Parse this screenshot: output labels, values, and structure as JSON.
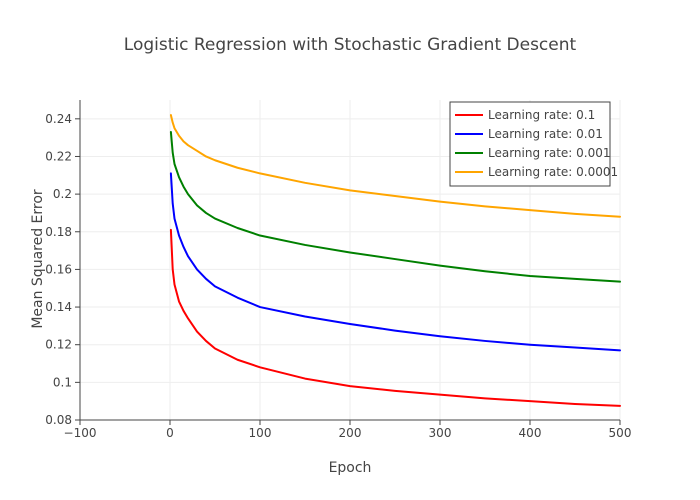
{
  "chart_data": {
    "type": "line",
    "title": "Logistic Regression with Stochastic Gradient Descent",
    "xlabel": "Epoch",
    "ylabel": "Mean Squared Error",
    "xlim": [
      -100,
      500
    ],
    "ylim": [
      0.08,
      0.25
    ],
    "xticks": [
      -100,
      0,
      100,
      200,
      300,
      400,
      500
    ],
    "xtick_labels": [
      "−100",
      "0",
      "100",
      "200",
      "300",
      "400",
      "500"
    ],
    "yticks": [
      0.08,
      0.1,
      0.12,
      0.14,
      0.16,
      0.18,
      0.2,
      0.22,
      0.24
    ],
    "ytick_labels": [
      "0.08",
      "0.1",
      "0.12",
      "0.14",
      "0.16",
      "0.18",
      "0.2",
      "0.22",
      "0.24"
    ],
    "grid": true,
    "legend_position": "top-right",
    "x": [
      1,
      3,
      5,
      10,
      15,
      20,
      30,
      40,
      50,
      75,
      100,
      150,
      200,
      250,
      300,
      350,
      400,
      450,
      500
    ],
    "series": [
      {
        "name": "Learning rate: 0.1",
        "color": "#ff0000",
        "values": [
          0.181,
          0.16,
          0.152,
          0.143,
          0.138,
          0.134,
          0.127,
          0.122,
          0.118,
          0.112,
          0.108,
          0.102,
          0.098,
          0.0955,
          0.0935,
          0.0915,
          0.09,
          0.0885,
          0.0875
        ]
      },
      {
        "name": "Learning rate: 0.01",
        "color": "#0000ff",
        "values": [
          0.211,
          0.195,
          0.187,
          0.178,
          0.172,
          0.167,
          0.16,
          0.155,
          0.151,
          0.145,
          0.14,
          0.135,
          0.131,
          0.1275,
          0.1245,
          0.122,
          0.12,
          0.1185,
          0.117
        ]
      },
      {
        "name": "Learning rate: 0.001",
        "color": "#008000",
        "values": [
          0.233,
          0.222,
          0.216,
          0.209,
          0.204,
          0.2,
          0.194,
          0.19,
          0.187,
          0.182,
          0.178,
          0.173,
          0.169,
          0.1655,
          0.162,
          0.159,
          0.1565,
          0.155,
          0.1535
        ]
      },
      {
        "name": "Learning rate: 0.0001",
        "color": "#ffa500",
        "values": [
          0.242,
          0.238,
          0.235,
          0.231,
          0.228,
          0.226,
          0.223,
          0.22,
          0.218,
          0.214,
          0.211,
          0.206,
          0.202,
          0.199,
          0.196,
          0.1935,
          0.1915,
          0.1895,
          0.188
        ]
      }
    ]
  }
}
